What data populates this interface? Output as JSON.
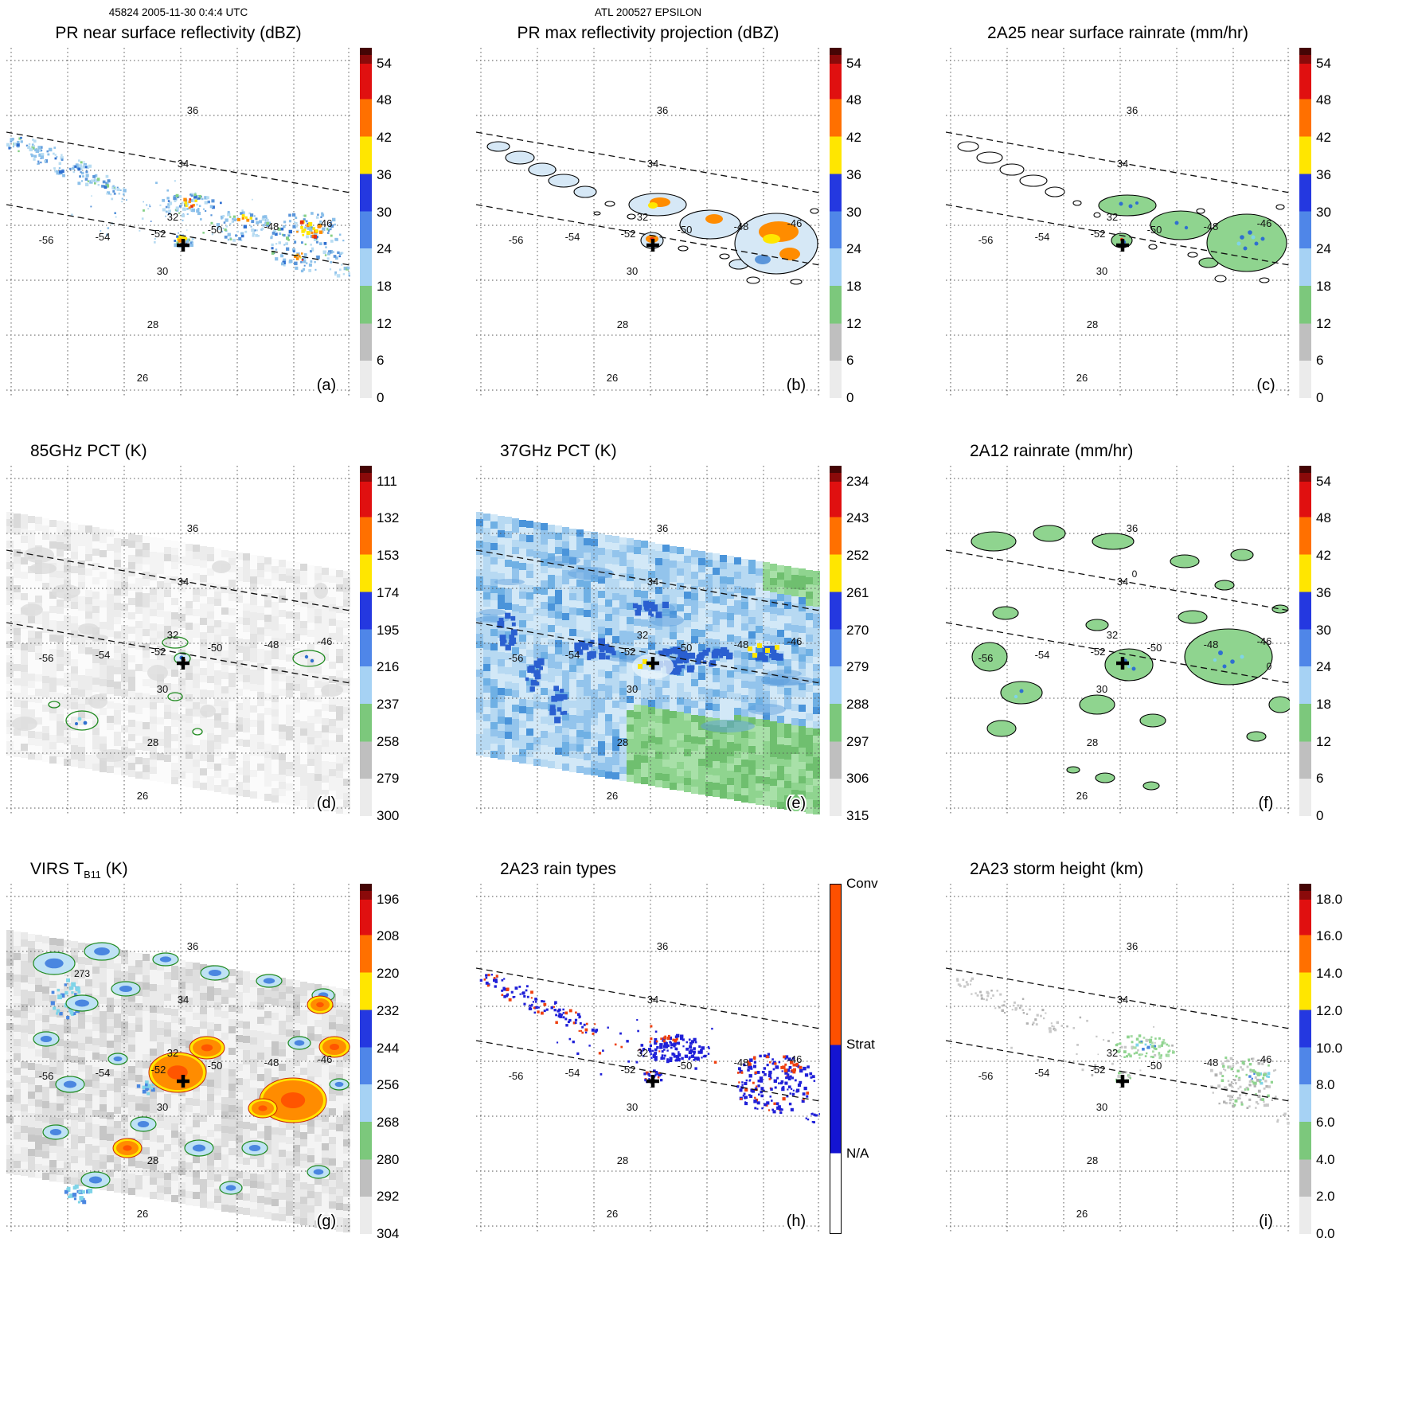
{
  "header": {
    "left": "45824 2005-11-30 0:4:4 UTC",
    "center": "ATL 200527 EPSILON"
  },
  "axis": {
    "lat_labels": [
      "36",
      "34",
      "32",
      "30",
      "28",
      "26"
    ],
    "lon_labels": [
      "-56",
      "-54",
      "-52",
      "-50",
      "-48",
      "-46"
    ]
  },
  "colorbars": {
    "dbz": [
      "54",
      "48",
      "42",
      "36",
      "30",
      "24",
      "18",
      "12",
      "6",
      "0"
    ],
    "pct85": [
      "111",
      "132",
      "153",
      "174",
      "195",
      "216",
      "237",
      "258",
      "279",
      "300"
    ],
    "pct37": [
      "234",
      "243",
      "252",
      "261",
      "270",
      "279",
      "288",
      "297",
      "306",
      "315"
    ],
    "virs": [
      "196",
      "208",
      "220",
      "232",
      "244",
      "256",
      "268",
      "280",
      "292",
      "304"
    ],
    "height": [
      "18.0",
      "16.0",
      "14.0",
      "12.0",
      "10.0",
      "8.0",
      "6.0",
      "4.0",
      "2.0",
      "0.0"
    ],
    "raintype": [
      "Conv",
      "Strat",
      "N/A"
    ]
  },
  "colors": {
    "scale": [
      [
        0,
        "#450505"
      ],
      [
        0.02,
        "#8a0a0a"
      ],
      [
        0.045,
        "#e01010"
      ],
      [
        0.147,
        "#ff7000"
      ],
      [
        0.253,
        "#ffe600"
      ],
      [
        0.36,
        "#2438e0"
      ],
      [
        0.467,
        "#4f86e8"
      ],
      [
        0.573,
        "#a6d2f4"
      ],
      [
        0.68,
        "#7cc87c"
      ],
      [
        0.787,
        "#bfbfbf"
      ],
      [
        0.893,
        "#ebebeb"
      ],
      [
        1,
        "#ffffff"
      ]
    ],
    "raintype_scale": [
      [
        0,
        "#fe5000"
      ],
      [
        0.46,
        "#1414d2"
      ],
      [
        0.77,
        "#ffffff"
      ],
      [
        1,
        "#ffffff"
      ]
    ],
    "conv": "#fe5000",
    "strat": "#1414d2",
    "na": "#ffffff"
  },
  "panels": [
    {
      "id": "a",
      "letter": "(a)",
      "title": "PR near surface reflectivity (dBZ)",
      "bar": "dbz",
      "title_align": "center"
    },
    {
      "id": "b",
      "letter": "(b)",
      "title": "PR max reflectivity projection (dBZ)",
      "bar": "dbz",
      "title_align": "center"
    },
    {
      "id": "c",
      "letter": "(c)",
      "title": "2A25 near surface rainrate (mm/hr)",
      "bar": "dbz",
      "title_align": "center"
    },
    {
      "id": "d",
      "letter": "(d)",
      "title": "85GHz PCT (K)",
      "bar": "pct85",
      "title_align": "left"
    },
    {
      "id": "e",
      "letter": "(e)",
      "title": "37GHz PCT (K)",
      "bar": "pct37",
      "title_align": "left"
    },
    {
      "id": "f",
      "letter": "(f)",
      "title": "2A12 rainrate (mm/hr)",
      "bar": "dbz",
      "title_align": "left",
      "annotations": [
        "0",
        "0"
      ]
    },
    {
      "id": "g",
      "letter": "(g)",
      "title_parts": {
        "pre": "VIRS T",
        "sub": "B11",
        "post": " (K)"
      },
      "bar": "virs",
      "title_align": "left",
      "annotations": [
        "273"
      ]
    },
    {
      "id": "h",
      "letter": "(h)",
      "title": "2A23 rain types",
      "bar": "raintype",
      "title_align": "left"
    },
    {
      "id": "i",
      "letter": "(i)",
      "title": "2A23 storm height (km)",
      "bar": "height",
      "title_align": "left"
    }
  ],
  "chart_data": {
    "type": "heatmap",
    "title": "45824 2005-11-30 0:4:4 UTC — ATL 200527 EPSILON",
    "layout": "3x3 satellite map panels sharing one overpass swath",
    "lon_ticks": [
      -56,
      -54,
      -52,
      -50,
      -48,
      -46
    ],
    "lat_ticks": [
      36,
      34,
      32,
      30,
      28,
      26
    ],
    "lon_range": [
      -58,
      -44
    ],
    "lat_range": [
      25,
      37
    ],
    "grid": "dotted graticule on, dashed lines mark radar swath edges",
    "storm_center_marker": {
      "lon": -51.5,
      "lat": 31.5
    },
    "panels": [
      {
        "id": "a",
        "title": "PR near surface reflectivity (dBZ)",
        "colorbar_ticks": [
          54,
          48,
          42,
          36,
          30,
          24,
          18,
          12,
          6,
          0
        ],
        "legend_position": "right",
        "notes": "scattered echoes 18-36 dBZ in narrow PR swath; convective cores to ~42-48 dBZ near storm center (-51.5,31.5) and near -47,31.5"
      },
      {
        "id": "b",
        "title": "PR max reflectivity projection (dBZ)",
        "colorbar_ticks": [
          54,
          48,
          42,
          36,
          30,
          24,
          18,
          12,
          6,
          0
        ],
        "legend_position": "right",
        "notes": "black-outlined echo regions with orange/yellow (36-48 dBZ) cores, largest cluster near -47 to -46, 31-32"
      },
      {
        "id": "c",
        "title": "2A25 near surface rainrate (mm/hr)",
        "colorbar_ticks": [
          54,
          48,
          42,
          36,
          30,
          24,
          18,
          12,
          6,
          0
        ],
        "legend_position": "right",
        "notes": "mostly light rain (green, <12 mm/hr) with embedded blue pixels (18-30 mm/hr)"
      },
      {
        "id": "d",
        "title": "85GHz PCT (K)",
        "colorbar_ticks": [
          111,
          132,
          153,
          174,
          195,
          216,
          237,
          258,
          279,
          300
        ],
        "legend_position": "right",
        "notes": "mostly warm (~280-300 K) gray field; small depressed-PCT cells (~237-255 K contoured) near storm center and -47.5,31.7"
      },
      {
        "id": "e",
        "title": "37GHz PCT (K)",
        "colorbar_ticks": [
          234,
          243,
          252,
          261,
          270,
          279,
          288,
          297,
          306,
          315
        ],
        "legend_position": "right",
        "notes": "broad 270-288 K blue field, darker ~261-270 K bands near center; green >288 K south/southeast; isolated yellow ~258 K pixels"
      },
      {
        "id": "f",
        "title": "2A12 rainrate (mm/hr)",
        "colorbar_ticks": [
          54,
          48,
          42,
          36,
          30,
          24,
          18,
          12,
          6,
          0
        ],
        "contour_labels": [
          "0"
        ],
        "legend_position": "right",
        "notes": "widespread light rain patches (green, outlined, 0-contour labeled) across TMI swath with few blue cells"
      },
      {
        "id": "g",
        "title": "VIRS TB11 (K)",
        "colorbar_ticks": [
          196,
          208,
          220,
          232,
          244,
          256,
          268,
          280,
          292,
          304
        ],
        "contour_labels": [
          "273"
        ],
        "legend_position": "right",
        "notes": "cold cloud tops: orange/yellow ~208-220 K cores around center and east rainband, blue/cyan ~244-256 K shields, 273 K contour labeled"
      },
      {
        "id": "h",
        "title": "2A23 rain types",
        "colorbar_categories": [
          "Conv",
          "Strat",
          "N/A"
        ],
        "legend_position": "right",
        "notes": "mostly stratiform (blue) pixels with scattered convective (orange-red) pixels, densest near -47,31.5"
      },
      {
        "id": "i",
        "title": "2A23 storm height (km)",
        "colorbar_ticks": [
          18.0,
          16.0,
          14.0,
          12.0,
          10.0,
          8.0,
          6.0,
          4.0,
          2.0,
          0.0
        ],
        "legend_position": "right",
        "notes": "storm heights mostly 4-6 km (gray) with 6-8 km green cells and isolated 8-12 km blue pixels"
      }
    ]
  }
}
